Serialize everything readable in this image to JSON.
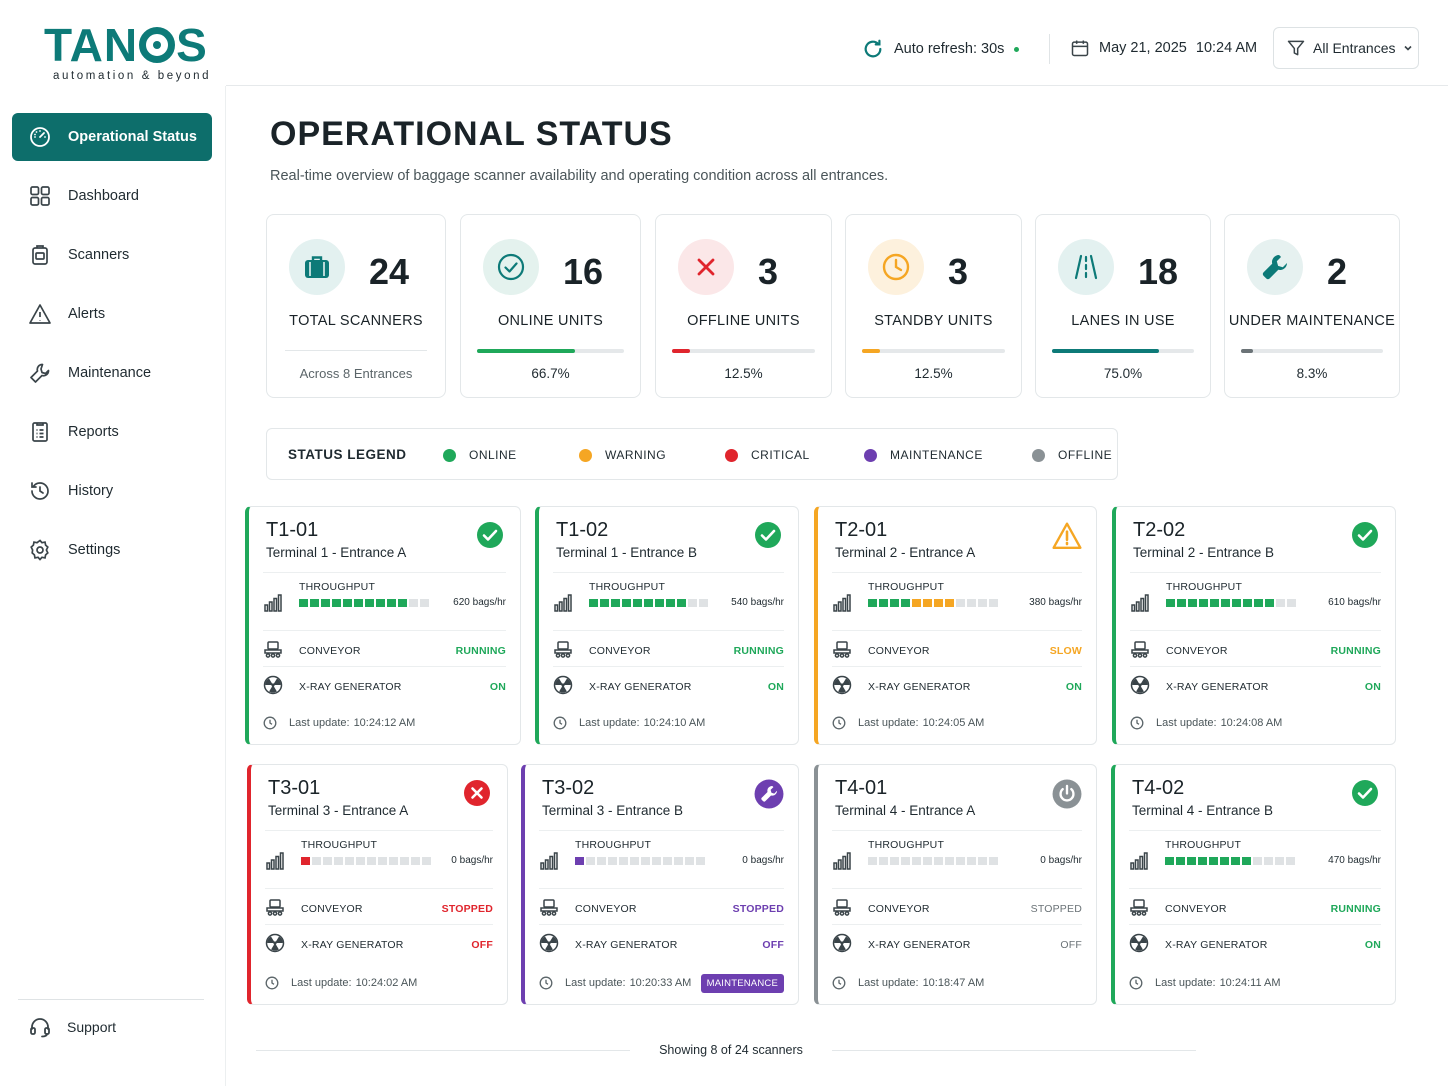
{
  "brand": {
    "name_a": "TAN",
    "name_b": "S",
    "tagline": "automation & beyond"
  },
  "sidebar": {
    "items": [
      {
        "label": "Operational Status",
        "icon": "gauge-icon",
        "active": true
      },
      {
        "label": "Dashboard",
        "icon": "grid-icon"
      },
      {
        "label": "Scanners",
        "icon": "scanner-icon"
      },
      {
        "label": "Alerts",
        "icon": "warning-icon"
      },
      {
        "label": "Maintenance",
        "icon": "wrench-icon"
      },
      {
        "label": "Reports",
        "icon": "report-icon"
      },
      {
        "label": "History",
        "icon": "history-icon"
      },
      {
        "label": "Settings",
        "icon": "gear-icon"
      }
    ],
    "support": "Support"
  },
  "topbar": {
    "auto_refresh": "Auto refresh: 30s",
    "date": "May 21, 2025",
    "time": "10:24 AM",
    "filter": "All Entrances"
  },
  "page": {
    "title": "OPERATIONAL STATUS",
    "subtitle": "Real-time overview of baggage scanner availability and operating condition across all entrances."
  },
  "summary": [
    {
      "value": "24",
      "label": "TOTAL SCANNERS",
      "footnote": "Across 8 Entrances",
      "icon": "briefcase-icon",
      "color": "#0d7a78",
      "bg": "#e3f1f0"
    },
    {
      "value": "16",
      "label": "ONLINE UNITS",
      "pct": "66.7%",
      "fraction": 0.667,
      "icon": "check-circle-icon",
      "color": "#1fa85a",
      "bg": "#e4f2ee"
    },
    {
      "value": "3",
      "label": "OFFLINE UNITS",
      "pct": "12.5%",
      "fraction": 0.125,
      "icon": "x-icon",
      "color": "#e0252d",
      "bg": "#fbe7e8"
    },
    {
      "value": "3",
      "label": "STANDBY UNITS",
      "pct": "12.5%",
      "fraction": 0.125,
      "icon": "clock-icon",
      "color": "#f5a623",
      "bg": "#fdf1dd"
    },
    {
      "value": "18",
      "label": "LANES IN USE",
      "pct": "75.0%",
      "fraction": 0.75,
      "icon": "road-icon",
      "color": "#0d7a78",
      "bg": "#e3f1f0"
    },
    {
      "value": "2",
      "label": "UNDER MAINTENANCE",
      "pct": "8.3%",
      "fraction": 0.083,
      "icon": "wrench-icon",
      "color": "#6b7377",
      "bg": "#e6f1f0"
    }
  ],
  "legend": {
    "title": "STATUS LEGEND",
    "items": [
      {
        "label": "ONLINE",
        "color": "#1fa85a"
      },
      {
        "label": "WARNING",
        "color": "#f5a623"
      },
      {
        "label": "CRITICAL",
        "color": "#e0252d"
      },
      {
        "label": "MAINTENANCE",
        "color": "#6d3fb0"
      },
      {
        "label": "OFFLINE",
        "color": "#8a9195"
      }
    ]
  },
  "labels": {
    "throughput": "THROUGHPUT",
    "conveyor": "CONVEYOR",
    "xray": "X-RAY GENERATOR",
    "last_update_prefix": "Last update:"
  },
  "scanners": [
    {
      "id": "T1-01",
      "location": "Terminal 1 - Entrance A",
      "status": "online",
      "accent": "#1fa85a",
      "throughput": "620 bags/hr",
      "segments_filled": 10,
      "segments_total": 12,
      "segment_colors": [
        "#1fa85a"
      ],
      "conveyor": "RUNNING",
      "conveyor_color": "#1fa85a",
      "xray": "ON",
      "xray_color": "#1fa85a",
      "last_update": "10:24:12 AM"
    },
    {
      "id": "T1-02",
      "location": "Terminal 1 - Entrance B",
      "status": "online",
      "accent": "#1fa85a",
      "throughput": "540 bags/hr",
      "segments_filled": 9,
      "segments_total": 11,
      "segment_colors": [
        "#1fa85a"
      ],
      "conveyor": "RUNNING",
      "conveyor_color": "#1fa85a",
      "xray": "ON",
      "xray_color": "#1fa85a",
      "last_update": "10:24:10 AM"
    },
    {
      "id": "T2-01",
      "location": "Terminal 2 - Entrance A",
      "status": "warning",
      "accent": "#f5a623",
      "throughput": "380 bags/hr",
      "segments_filled": 8,
      "segments_total": 12,
      "segment_colors": [
        "#1fa85a",
        "#1fa85a",
        "#1fa85a",
        "#1fa85a",
        "#f5a623",
        "#f5a623",
        "#f5a623",
        "#f5a623"
      ],
      "conveyor": "SLOW",
      "conveyor_color": "#f5a623",
      "xray": "ON",
      "xray_color": "#1fa85a",
      "last_update": "10:24:05 AM"
    },
    {
      "id": "T2-02",
      "location": "Terminal 2 - Entrance B",
      "status": "online",
      "accent": "#1fa85a",
      "throughput": "610 bags/hr",
      "segments_filled": 10,
      "segments_total": 12,
      "segment_colors": [
        "#1fa85a"
      ],
      "conveyor": "RUNNING",
      "conveyor_color": "#1fa85a",
      "xray": "ON",
      "xray_color": "#1fa85a",
      "last_update": "10:24:08 AM"
    },
    {
      "id": "T3-01",
      "location": "Terminal 3 - Entrance A",
      "status": "critical",
      "accent": "#e0252d",
      "throughput": "0 bags/hr",
      "segments_filled": 1,
      "segments_total": 12,
      "segment_colors": [
        "#e0252d"
      ],
      "conveyor": "STOPPED",
      "conveyor_color": "#e0252d",
      "xray": "OFF",
      "xray_color": "#e0252d",
      "last_update": "10:24:02 AM"
    },
    {
      "id": "T3-02",
      "location": "Terminal 3 - Entrance B",
      "status": "maintenance",
      "accent": "#6d3fb0",
      "throughput": "0 bags/hr",
      "segments_filled": 1,
      "segments_total": 12,
      "segment_colors": [
        "#6d3fb0"
      ],
      "conveyor": "STOPPED",
      "conveyor_color": "#6d3fb0",
      "xray": "OFF",
      "xray_color": "#6d3fb0",
      "last_update": "10:20:33 AM",
      "badge": "MAINTENANCE"
    },
    {
      "id": "T4-01",
      "location": "Terminal 4 - Entrance A",
      "status": "offline",
      "accent": "#8a9195",
      "throughput": "0 bags/hr",
      "segments_filled": 0,
      "segments_total": 12,
      "segment_colors": [
        "#8a9195"
      ],
      "conveyor": "STOPPED",
      "conveyor_color": "#6b7377",
      "xray": "OFF",
      "xray_color": "#6b7377",
      "last_update": "10:18:47 AM"
    },
    {
      "id": "T4-02",
      "location": "Terminal 4 - Entrance B",
      "status": "online",
      "accent": "#1fa85a",
      "throughput": "470 bags/hr",
      "segments_filled": 8,
      "segments_total": 12,
      "segment_colors": [
        "#1fa85a"
      ],
      "conveyor": "RUNNING",
      "conveyor_color": "#1fa85a",
      "xray": "ON",
      "xray_color": "#1fa85a",
      "last_update": "10:24:11 AM"
    }
  ],
  "footer": {
    "showing": "Showing 8 of 24 scanners"
  }
}
